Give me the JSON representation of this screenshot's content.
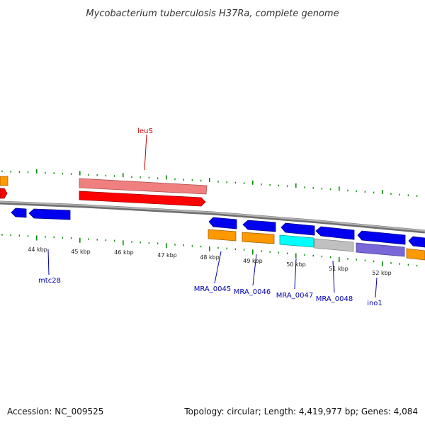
{
  "title": "Mycobacterium tuberculosis H37Ra, complete genome",
  "colors": {
    "backbone": "#8c8c8c",
    "tick": "#0a8a0a",
    "red": "#ff0000",
    "pink": "#f08080",
    "blue": "#0000ee",
    "orange": "#ff9900",
    "cyan": "#00ffff",
    "gray": "#c0c0c0",
    "purple": "#7a68d8",
    "label_blue": "#0000aa",
    "label_red": "#cc0000"
  },
  "kbp_labels": [
    "44 kbp",
    "45 kbp",
    "46 kbp",
    "47 kbp",
    "48 kbp",
    "49 kbp",
    "50 kbp",
    "51 kbp",
    "52 kbp"
  ],
  "genes": [
    {
      "name": "leuS",
      "color": "red"
    },
    {
      "name": "mtc28",
      "color": "blue"
    },
    {
      "name": "MRA_0045",
      "color": "blue"
    },
    {
      "name": "MRA_0046",
      "color": "orange"
    },
    {
      "name": "MRA_0047",
      "color": "cyan"
    },
    {
      "name": "MRA_0048",
      "color": "gray"
    },
    {
      "name": "ino1",
      "color": "purple"
    }
  ],
  "footer": {
    "accession": "Accession: NC_009525",
    "topology": "Topology: circular; Length: 4,419,977 bp; Genes: 4,084"
  }
}
